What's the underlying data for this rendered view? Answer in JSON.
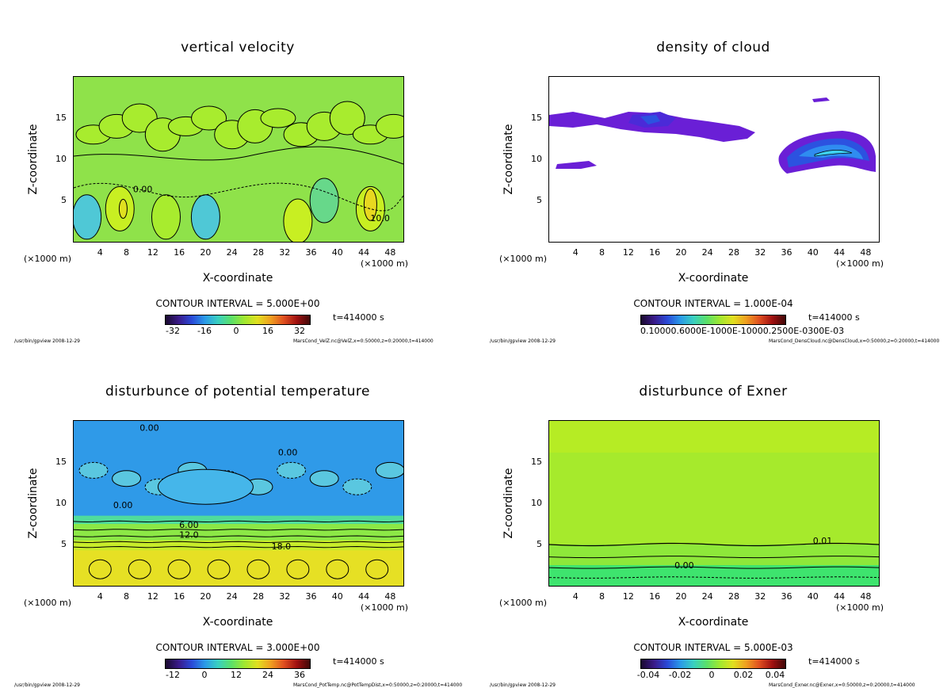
{
  "panels": [
    {
      "title": "vertical velocity",
      "field": "velz",
      "colors": [
        "#4fc8d6",
        "#67d88a",
        "#8fe24a",
        "#a8ec2e",
        "#c8ef22"
      ],
      "contour_interval": "CONTOUR INTERVAL = 5.000E+00",
      "time": "t=414000 s",
      "cbar_ticks": [
        "-32",
        "-16",
        "0",
        "16",
        "32"
      ],
      "cbar_tick_string": "",
      "labels": [
        "10.0",
        "0.00"
      ],
      "footer_left": "/usr/bin/gpview  2008-12-29",
      "footer_right": "MarsCond_VelZ.nc@VelZ,x=0:50000,z=0:20000,t=414000"
    },
    {
      "title": "density of cloud",
      "field": "cloud",
      "colors": [
        "#6a1fd6",
        "#4b2ad8",
        "#2c52e0",
        "#2f8cf0",
        "#3fd2f4"
      ],
      "contour_interval": "CONTOUR INTERVAL = 1.000E-04",
      "time": "t=414000 s",
      "cbar_ticks": [],
      "cbar_tick_string": "0.10000.6000E-1000E-10000.2500E-0300E-03",
      "labels": [],
      "footer_left": "/usr/bin/gpview  2008-12-29",
      "footer_right": "MarsCond_DensCloud.nc@DensCloud,x=0:50000,z=0:20000,t=414000"
    },
    {
      "title": "disturbunce of potential temperature",
      "field": "temp",
      "colors": [
        "#2f9ae8",
        "#45b6ea",
        "#5ac7e0",
        "#4fdc9c",
        "#8ce846",
        "#c8ec2a",
        "#e6e024"
      ],
      "contour_interval": "CONTOUR INTERVAL = 3.000E+00",
      "time": "t=414000 s",
      "cbar_ticks": [
        "-12",
        "0",
        "12",
        "24",
        "36"
      ],
      "cbar_tick_string": "",
      "labels": [
        "0.00",
        "0.00",
        "0.00",
        "6.00",
        "12.0",
        "18.0"
      ],
      "footer_left": "/usr/bin/gpview  2008-12-29",
      "footer_right": "MarsCond_PotTemp.nc@PotTempDist,x=0:50000,z=0:20000,t=414000"
    },
    {
      "title": "disturbunce of Exner",
      "field": "exner",
      "colors": [
        "#3ee46e",
        "#8ee83a",
        "#a6ea2c",
        "#b6ec24"
      ],
      "contour_interval": "CONTOUR INTERVAL = 5.000E-03",
      "time": "t=414000 s",
      "cbar_ticks": [
        "-0.04",
        "-0.02",
        "0",
        "0.02",
        "0.04"
      ],
      "cbar_tick_string": "",
      "labels": [
        "0.01",
        "0.00"
      ],
      "footer_left": "/usr/bin/gpview  2008-12-29",
      "footer_right": "MarsCond_Exner.nc@Exner,x=0:50000,z=0:20000,t=414000"
    }
  ],
  "axes": {
    "xlabel": "X-coordinate",
    "ylabel": "Z-coordinate",
    "x_unit": "(×1000 m)",
    "xticks": [
      "4",
      "8",
      "12",
      "16",
      "20",
      "24",
      "28",
      "32",
      "36",
      "40",
      "44",
      "48"
    ],
    "yticks": [
      "5",
      "10",
      "15"
    ]
  },
  "chart_data": [
    {
      "type": "heatmap",
      "title": "vertical velocity",
      "xlabel": "X-coordinate",
      "ylabel": "Z-coordinate",
      "x_unit": "(×1000 m)",
      "xlim": [
        0,
        50
      ],
      "ylim": [
        0,
        20
      ],
      "contour_interval": 5.0,
      "colorbar_range": [
        -40,
        40
      ],
      "time": "t=414000 s"
    },
    {
      "type": "heatmap",
      "title": "density of cloud",
      "xlabel": "X-coordinate",
      "ylabel": "Z-coordinate",
      "x_unit": "(×1000 m)",
      "xlim": [
        0,
        50
      ],
      "ylim": [
        0,
        20
      ],
      "contour_interval": 0.0001,
      "time": "t=414000 s"
    },
    {
      "type": "heatmap",
      "title": "disturbunce of potential temperature",
      "xlabel": "X-coordinate",
      "ylabel": "Z-coordinate",
      "x_unit": "(×1000 m)",
      "xlim": [
        0,
        50
      ],
      "ylim": [
        0,
        20
      ],
      "contour_interval": 3.0,
      "colorbar_range": [
        -18,
        42
      ],
      "time": "t=414000 s"
    },
    {
      "type": "heatmap",
      "title": "disturbunce of Exner",
      "xlabel": "X-coordinate",
      "ylabel": "Z-coordinate",
      "x_unit": "(×1000 m)",
      "xlim": [
        0,
        50
      ],
      "ylim": [
        0,
        20
      ],
      "contour_interval": 0.005,
      "colorbar_range": [
        -0.05,
        0.05
      ],
      "time": "t=414000 s"
    }
  ]
}
